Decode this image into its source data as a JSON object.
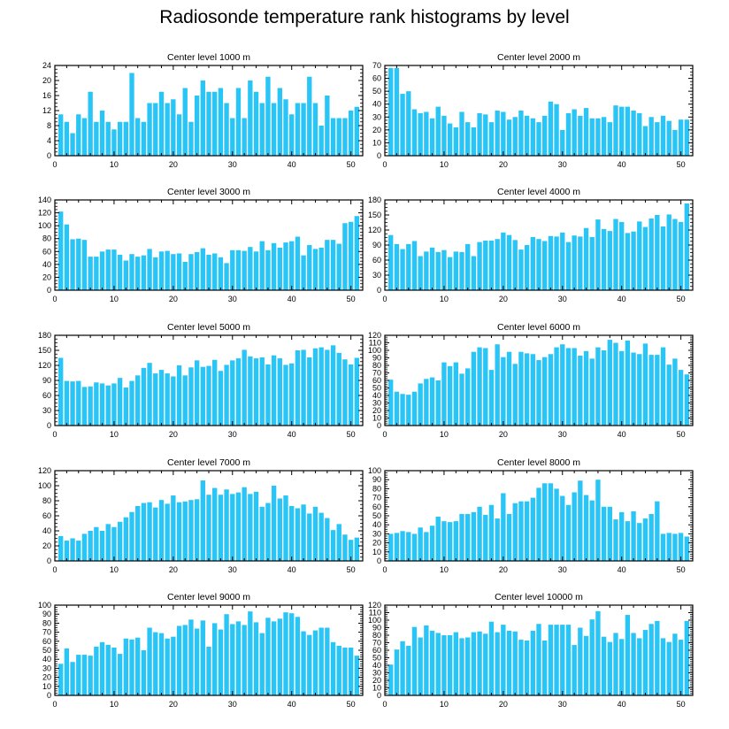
{
  "figure_title": "Radiosonde temperature rank histograms by level",
  "colors": {
    "bar": "#29C5F6",
    "axis": "#000000"
  },
  "chart_data": [
    {
      "type": "bar",
      "title": "Center level 1000 m",
      "x": [
        1,
        2,
        3,
        4,
        5,
        6,
        7,
        8,
        9,
        10,
        11,
        12,
        13,
        14,
        15,
        16,
        17,
        18,
        19,
        20,
        21,
        22,
        23,
        24,
        25,
        26,
        27,
        28,
        29,
        30,
        31,
        32,
        33,
        34,
        35,
        36,
        37,
        38,
        39,
        40,
        41,
        42,
        43,
        44,
        45,
        46,
        47,
        48,
        49,
        50,
        51
      ],
      "values": [
        11,
        9,
        6,
        11,
        10,
        17,
        9,
        12,
        9,
        7,
        9,
        9,
        22,
        10,
        9,
        14,
        14,
        17,
        14,
        15,
        11,
        18,
        9,
        16,
        20,
        17,
        17,
        18,
        14,
        10,
        18,
        10,
        20,
        17,
        14,
        21,
        14,
        18,
        15,
        11,
        14,
        14,
        21,
        14,
        8,
        16,
        10,
        10,
        10,
        12,
        13
      ],
      "xlim": [
        0,
        52
      ],
      "ylim": [
        0,
        24
      ],
      "xticks": [
        0,
        10,
        20,
        30,
        40,
        50
      ],
      "yticks": [
        0,
        4,
        8,
        12,
        16,
        20,
        24
      ]
    },
    {
      "type": "bar",
      "title": "Center level 2000 m",
      "x": [
        1,
        2,
        3,
        4,
        5,
        6,
        7,
        8,
        9,
        10,
        11,
        12,
        13,
        14,
        15,
        16,
        17,
        18,
        19,
        20,
        21,
        22,
        23,
        24,
        25,
        26,
        27,
        28,
        29,
        30,
        31,
        32,
        33,
        34,
        35,
        36,
        37,
        38,
        39,
        40,
        41,
        42,
        43,
        44,
        45,
        46,
        47,
        48,
        49,
        50,
        51
      ],
      "values": [
        68,
        68,
        48,
        50,
        36,
        33,
        34,
        29,
        38,
        31,
        25,
        22,
        34,
        26,
        22,
        33,
        32,
        26,
        35,
        34,
        28,
        30,
        35,
        31,
        29,
        26,
        31,
        42,
        40,
        20,
        33,
        36,
        31,
        37,
        29,
        29,
        30,
        26,
        39,
        38,
        38,
        35,
        33,
        23,
        30,
        26,
        31,
        27,
        20,
        28,
        28
      ],
      "xlim": [
        0,
        52
      ],
      "ylim": [
        0,
        70
      ],
      "xticks": [
        0,
        10,
        20,
        30,
        40,
        50
      ],
      "yticks": [
        0,
        10,
        20,
        30,
        40,
        50,
        60,
        70
      ]
    },
    {
      "type": "bar",
      "title": "Center level 3000 m",
      "x": [
        1,
        2,
        3,
        4,
        5,
        6,
        7,
        8,
        9,
        10,
        11,
        12,
        13,
        14,
        15,
        16,
        17,
        18,
        19,
        20,
        21,
        22,
        23,
        24,
        25,
        26,
        27,
        28,
        29,
        30,
        31,
        32,
        33,
        34,
        35,
        36,
        37,
        38,
        39,
        40,
        41,
        42,
        43,
        44,
        45,
        46,
        47,
        48,
        49,
        50,
        51
      ],
      "values": [
        122,
        102,
        79,
        80,
        78,
        52,
        52,
        60,
        63,
        63,
        55,
        46,
        56,
        52,
        54,
        64,
        51,
        60,
        61,
        56,
        57,
        44,
        56,
        59,
        65,
        55,
        57,
        51,
        42,
        62,
        62,
        61,
        67,
        60,
        76,
        62,
        73,
        66,
        74,
        76,
        83,
        54,
        70,
        64,
        66,
        78,
        78,
        72,
        104,
        106,
        115
      ],
      "xlim": [
        0,
        52
      ],
      "ylim": [
        0,
        140
      ],
      "xticks": [
        0,
        10,
        20,
        30,
        40,
        50
      ],
      "yticks": [
        0,
        20,
        40,
        60,
        80,
        100,
        120,
        140
      ]
    },
    {
      "type": "bar",
      "title": "Center level 4000 m",
      "x": [
        1,
        2,
        3,
        4,
        5,
        6,
        7,
        8,
        9,
        10,
        11,
        12,
        13,
        14,
        15,
        16,
        17,
        18,
        19,
        20,
        21,
        22,
        23,
        24,
        25,
        26,
        27,
        28,
        29,
        30,
        31,
        32,
        33,
        34,
        35,
        36,
        37,
        38,
        39,
        40,
        41,
        42,
        43,
        44,
        45,
        46,
        47,
        48,
        49,
        50,
        51
      ],
      "values": [
        110,
        92,
        82,
        92,
        98,
        68,
        77,
        85,
        76,
        80,
        66,
        77,
        76,
        92,
        68,
        96,
        99,
        99,
        102,
        115,
        110,
        100,
        81,
        90,
        106,
        102,
        98,
        108,
        107,
        115,
        96,
        109,
        107,
        124,
        106,
        141,
        122,
        118,
        142,
        136,
        114,
        117,
        137,
        126,
        143,
        150,
        127,
        151,
        142,
        136,
        173
      ],
      "xlim": [
        0,
        52
      ],
      "ylim": [
        0,
        180
      ],
      "xticks": [
        0,
        10,
        20,
        30,
        40,
        50
      ],
      "yticks": [
        0,
        30,
        60,
        90,
        120,
        150,
        180
      ]
    },
    {
      "type": "bar",
      "title": "Center level 5000 m",
      "x": [
        1,
        2,
        3,
        4,
        5,
        6,
        7,
        8,
        9,
        10,
        11,
        12,
        13,
        14,
        15,
        16,
        17,
        18,
        19,
        20,
        21,
        22,
        23,
        24,
        25,
        26,
        27,
        28,
        29,
        30,
        31,
        32,
        33,
        34,
        35,
        36,
        37,
        38,
        39,
        40,
        41,
        42,
        43,
        44,
        45,
        46,
        47,
        48,
        49,
        50,
        51
      ],
      "values": [
        135,
        89,
        88,
        89,
        77,
        78,
        86,
        84,
        80,
        84,
        95,
        76,
        89,
        100,
        115,
        125,
        104,
        111,
        104,
        98,
        120,
        100,
        116,
        130,
        117,
        119,
        131,
        109,
        121,
        130,
        134,
        151,
        138,
        134,
        136,
        122,
        140,
        134,
        121,
        124,
        150,
        151,
        136,
        154,
        156,
        151,
        160,
        145,
        132,
        122,
        135
      ],
      "xlim": [
        0,
        52
      ],
      "ylim": [
        0,
        180
      ],
      "xticks": [
        0,
        10,
        20,
        30,
        40,
        50
      ],
      "yticks": [
        0,
        30,
        60,
        90,
        120,
        150,
        180
      ]
    },
    {
      "type": "bar",
      "title": "Center level 6000 m",
      "x": [
        1,
        2,
        3,
        4,
        5,
        6,
        7,
        8,
        9,
        10,
        11,
        12,
        13,
        14,
        15,
        16,
        17,
        18,
        19,
        20,
        21,
        22,
        23,
        24,
        25,
        26,
        27,
        28,
        29,
        30,
        31,
        32,
        33,
        34,
        35,
        36,
        37,
        38,
        39,
        40,
        41,
        42,
        43,
        44,
        45,
        46,
        47,
        48,
        49,
        50,
        51
      ],
      "values": [
        61,
        45,
        42,
        41,
        45,
        56,
        62,
        64,
        60,
        84,
        79,
        84,
        69,
        76,
        98,
        104,
        103,
        74,
        108,
        91,
        98,
        82,
        98,
        96,
        95,
        87,
        91,
        95,
        104,
        108,
        103,
        103,
        93,
        99,
        89,
        104,
        100,
        114,
        110,
        99,
        113,
        97,
        95,
        109,
        94,
        94,
        104,
        81,
        89,
        74,
        68
      ],
      "xlim": [
        0,
        52
      ],
      "ylim": [
        0,
        120
      ],
      "xticks": [
        0,
        10,
        20,
        30,
        40,
        50
      ],
      "yticks": [
        0,
        10,
        20,
        30,
        40,
        50,
        60,
        70,
        80,
        90,
        100,
        110,
        120
      ]
    },
    {
      "type": "bar",
      "title": "Center level 7000 m",
      "x": [
        1,
        2,
        3,
        4,
        5,
        6,
        7,
        8,
        9,
        10,
        11,
        12,
        13,
        14,
        15,
        16,
        17,
        18,
        19,
        20,
        21,
        22,
        23,
        24,
        25,
        26,
        27,
        28,
        29,
        30,
        31,
        32,
        33,
        34,
        35,
        36,
        37,
        38,
        39,
        40,
        41,
        42,
        43,
        44,
        45,
        46,
        47,
        48,
        49,
        50,
        51
      ],
      "values": [
        33,
        27,
        30,
        27,
        36,
        40,
        45,
        40,
        49,
        45,
        52,
        58,
        65,
        73,
        77,
        78,
        71,
        81,
        76,
        87,
        78,
        79,
        81,
        82,
        107,
        88,
        97,
        88,
        95,
        89,
        91,
        98,
        89,
        92,
        72,
        77,
        100,
        83,
        87,
        73,
        70,
        75,
        63,
        72,
        64,
        57,
        41,
        49,
        35,
        28,
        31
      ],
      "xlim": [
        0,
        52
      ],
      "ylim": [
        0,
        120
      ],
      "xticks": [
        0,
        10,
        20,
        30,
        40,
        50
      ],
      "yticks": [
        0,
        20,
        40,
        60,
        80,
        100,
        120
      ]
    },
    {
      "type": "bar",
      "title": "Center level 8000 m",
      "x": [
        1,
        2,
        3,
        4,
        5,
        6,
        7,
        8,
        9,
        10,
        11,
        12,
        13,
        14,
        15,
        16,
        17,
        18,
        19,
        20,
        21,
        22,
        23,
        24,
        25,
        26,
        27,
        28,
        29,
        30,
        31,
        32,
        33,
        34,
        35,
        36,
        37,
        38,
        39,
        40,
        41,
        42,
        43,
        44,
        45,
        46,
        47,
        48,
        49,
        50,
        51
      ],
      "values": [
        30,
        31,
        33,
        32,
        30,
        37,
        32,
        39,
        49,
        44,
        43,
        44,
        52,
        52,
        54,
        60,
        51,
        62,
        47,
        75,
        52,
        64,
        66,
        66,
        70,
        81,
        86,
        86,
        80,
        72,
        62,
        76,
        89,
        73,
        67,
        90,
        60,
        60,
        46,
        54,
        44,
        55,
        42,
        47,
        52,
        66,
        30,
        31,
        30,
        31,
        27
      ],
      "xlim": [
        0,
        52
      ],
      "ylim": [
        0,
        100
      ],
      "xticks": [
        0,
        10,
        20,
        30,
        40,
        50
      ],
      "yticks": [
        0,
        10,
        20,
        30,
        40,
        50,
        60,
        70,
        80,
        90,
        100
      ]
    },
    {
      "type": "bar",
      "title": "Center level 9000 m",
      "x": [
        1,
        2,
        3,
        4,
        5,
        6,
        7,
        8,
        9,
        10,
        11,
        12,
        13,
        14,
        15,
        16,
        17,
        18,
        19,
        20,
        21,
        22,
        23,
        24,
        25,
        26,
        27,
        28,
        29,
        30,
        31,
        32,
        33,
        34,
        35,
        36,
        37,
        38,
        39,
        40,
        41,
        42,
        43,
        44,
        45,
        46,
        47,
        48,
        49,
        50,
        51
      ],
      "values": [
        35,
        52,
        37,
        45,
        45,
        44,
        54,
        59,
        56,
        53,
        46,
        63,
        62,
        64,
        50,
        75,
        70,
        69,
        63,
        65,
        77,
        78,
        84,
        74,
        83,
        54,
        80,
        73,
        90,
        79,
        82,
        78,
        93,
        81,
        69,
        86,
        82,
        85,
        92,
        91,
        87,
        71,
        67,
        72,
        75,
        75,
        59,
        55,
        53,
        53,
        44
      ],
      "xlim": [
        0,
        52
      ],
      "ylim": [
        0,
        100
      ],
      "xticks": [
        0,
        10,
        20,
        30,
        40,
        50
      ],
      "yticks": [
        0,
        10,
        20,
        30,
        40,
        50,
        60,
        70,
        80,
        90,
        100
      ]
    },
    {
      "type": "bar",
      "title": "Center level 10000 m",
      "x": [
        1,
        2,
        3,
        4,
        5,
        6,
        7,
        8,
        9,
        10,
        11,
        12,
        13,
        14,
        15,
        16,
        17,
        18,
        19,
        20,
        21,
        22,
        23,
        24,
        25,
        26,
        27,
        28,
        29,
        30,
        31,
        32,
        33,
        34,
        35,
        36,
        37,
        38,
        39,
        40,
        41,
        42,
        43,
        44,
        45,
        46,
        47,
        48,
        49,
        50,
        51
      ],
      "values": [
        41,
        61,
        72,
        66,
        91,
        77,
        93,
        86,
        83,
        80,
        80,
        84,
        76,
        77,
        84,
        85,
        82,
        98,
        84,
        94,
        86,
        85,
        74,
        73,
        86,
        95,
        73,
        94,
        94,
        94,
        94,
        67,
        90,
        79,
        101,
        112,
        78,
        71,
        83,
        75,
        107,
        83,
        76,
        87,
        95,
        99,
        76,
        71,
        82,
        74,
        99
      ],
      "xlim": [
        0,
        52
      ],
      "ylim": [
        0,
        120
      ],
      "xticks": [
        0,
        10,
        20,
        30,
        40,
        50
      ],
      "yticks": [
        0,
        10,
        20,
        30,
        40,
        50,
        60,
        70,
        80,
        90,
        100,
        110,
        120
      ]
    }
  ]
}
